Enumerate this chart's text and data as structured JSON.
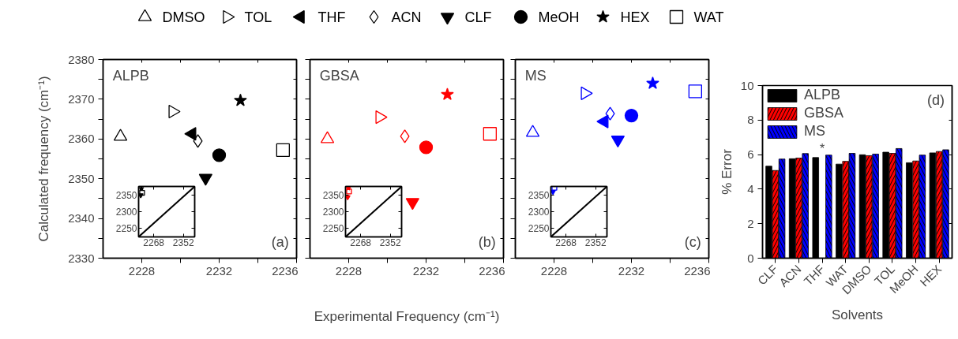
{
  "chart_data": [
    {
      "type": "scatter",
      "ylabel": "Calculated frequency (cm⁻¹)",
      "xlim": [
        2226,
        2236
      ],
      "ylim": [
        2330,
        2380
      ],
      "xticks": [
        2228,
        2232,
        2236
      ],
      "yticks": [
        2330,
        2340,
        2350,
        2360,
        2370,
        2380
      ],
      "grid": false,
      "legend": "top",
      "annotations": [
        "ALPB",
        "(a)"
      ],
      "series": [
        {
          "name": "DMSO",
          "color": "#000000",
          "marker": "triangle-open",
          "x": [
            2226.9
          ],
          "values": [
            2360.6
          ]
        },
        {
          "name": "TOL",
          "color": "#000000",
          "marker": "triangle-right-open",
          "x": [
            2229.6
          ],
          "values": [
            2366.9
          ]
        },
        {
          "name": "THF",
          "color": "#000000",
          "marker": "triangle-left",
          "x": [
            2230.6
          ],
          "values": [
            2361.3
          ]
        },
        {
          "name": "ACN",
          "color": "#000000",
          "marker": "diamond-open",
          "x": [
            2230.9
          ],
          "values": [
            2359.5
          ]
        },
        {
          "name": "CLF",
          "color": "#000000",
          "marker": "triangle-down",
          "x": [
            2231.3
          ],
          "values": [
            2350.2
          ]
        },
        {
          "name": "MeOH",
          "color": "#000000",
          "marker": "circle",
          "x": [
            2232.0
          ],
          "values": [
            2355.9
          ]
        },
        {
          "name": "HEX",
          "color": "#000000",
          "marker": "star",
          "x": [
            2233.1
          ],
          "values": [
            2369.7
          ]
        },
        {
          "name": "WAT",
          "color": "#000000",
          "marker": "square-open",
          "x": [
            2235.3
          ],
          "values": [
            2357.2
          ]
        }
      ]
    },
    {
      "type": "scatter",
      "xlim": [
        2225,
        2384
      ],
      "ylim": [
        2225,
        2376
      ],
      "xticks": [
        2268,
        2352
      ],
      "yticks": [
        2250,
        2300,
        2350
      ],
      "grid": false,
      "series": [
        {
          "type": "line",
          "color": "#000000",
          "x": [
            2225,
            2384
          ],
          "values": [
            2225,
            2376
          ]
        },
        {
          "color": "#000000",
          "marker": "triangle-down",
          "x": [
            2231
          ],
          "values": [
            2350
          ]
        },
        {
          "color": "#000000",
          "marker": "square-open",
          "x": [
            2235
          ],
          "values": [
            2357
          ]
        },
        {
          "color": "#000000",
          "marker": "star",
          "x": [
            2233
          ],
          "values": [
            2370
          ]
        }
      ]
    },
    {
      "type": "scatter",
      "xlabel": "Experimental Frequency (cm⁻¹)",
      "xlim": [
        2226,
        2236
      ],
      "ylim": [
        2330,
        2380
      ],
      "xticks": [
        2228,
        2232,
        2236
      ],
      "yticks": [
        2330,
        2340,
        2350,
        2360,
        2370,
        2380
      ],
      "tick_labels": "x",
      "grid": false,
      "annotations": [
        "GBSA",
        "(b)"
      ],
      "series": [
        {
          "color": "#ff0000",
          "marker": "triangle-open",
          "x": [
            2226.9
          ],
          "values": [
            2360.0
          ]
        },
        {
          "color": "#ff0000",
          "marker": "triangle-right-open",
          "x": [
            2229.6
          ],
          "values": [
            2365.5
          ]
        },
        {
          "color": "#ff0000",
          "marker": "diamond-open",
          "x": [
            2230.9
          ],
          "values": [
            2360.7
          ]
        },
        {
          "color": "#ff0000",
          "marker": "triangle-down",
          "x": [
            2231.3
          ],
          "values": [
            2344.1
          ]
        },
        {
          "color": "#ff0000",
          "marker": "circle",
          "x": [
            2232.0
          ],
          "values": [
            2357.9
          ]
        },
        {
          "color": "#ff0000",
          "marker": "star",
          "x": [
            2233.1
          ],
          "values": [
            2371.2
          ]
        },
        {
          "color": "#ff0000",
          "marker": "square-open",
          "x": [
            2235.3
          ],
          "values": [
            2361.3
          ]
        }
      ]
    },
    {
      "type": "scatter",
      "xlim": [
        2225,
        2384
      ],
      "ylim": [
        2225,
        2376
      ],
      "xticks": [
        2268,
        2352
      ],
      "yticks": [
        2250,
        2300,
        2350
      ],
      "grid": false,
      "series": [
        {
          "type": "line",
          "color": "#000000",
          "x": [
            2225,
            2384
          ],
          "values": [
            2225,
            2376
          ]
        },
        {
          "color": "#ff0000",
          "marker": "triangle-down",
          "x": [
            2231
          ],
          "values": [
            2344
          ]
        },
        {
          "color": "#ff0000",
          "marker": "square-open",
          "x": [
            2235
          ],
          "values": [
            2361
          ]
        },
        {
          "color": "#ff0000",
          "marker": "star",
          "x": [
            2233
          ],
          "values": [
            2371
          ]
        }
      ]
    },
    {
      "type": "scatter",
      "xlim": [
        2226,
        2236
      ],
      "ylim": [
        2330,
        2380
      ],
      "xticks": [
        2228,
        2232,
        2236
      ],
      "yticks": [
        2330,
        2340,
        2350,
        2360,
        2370,
        2380
      ],
      "tick_labels": "x",
      "grid": false,
      "annotations": [
        "MS",
        "(c)"
      ],
      "series": [
        {
          "color": "#0000ff",
          "marker": "triangle-open",
          "x": [
            2226.9
          ],
          "values": [
            2361.6
          ]
        },
        {
          "color": "#0000ff",
          "marker": "triangle-right-open",
          "x": [
            2229.6
          ],
          "values": [
            2371.5
          ]
        },
        {
          "color": "#0000ff",
          "marker": "triangle-left",
          "x": [
            2230.6
          ],
          "values": [
            2364.4
          ]
        },
        {
          "color": "#0000ff",
          "marker": "diamond-open",
          "x": [
            2230.9
          ],
          "values": [
            2366.4
          ]
        },
        {
          "color": "#0000ff",
          "marker": "triangle-down",
          "x": [
            2231.3
          ],
          "values": [
            2359.8
          ]
        },
        {
          "color": "#0000ff",
          "marker": "circle",
          "x": [
            2232.0
          ],
          "values": [
            2365.9
          ]
        },
        {
          "color": "#0000ff",
          "marker": "star",
          "x": [
            2233.1
          ],
          "values": [
            2374.0
          ]
        },
        {
          "color": "#0000ff",
          "marker": "square-open",
          "x": [
            2235.3
          ],
          "values": [
            2372.0
          ]
        }
      ]
    },
    {
      "type": "scatter",
      "xlim": [
        2225,
        2384
      ],
      "ylim": [
        2225,
        2376
      ],
      "xticks": [
        2268,
        2352
      ],
      "yticks": [
        2250,
        2300,
        2350
      ],
      "grid": false,
      "series": [
        {
          "type": "line",
          "color": "#000000",
          "x": [
            2225,
            2384
          ],
          "values": [
            2225,
            2376
          ]
        },
        {
          "color": "#0000ff",
          "marker": "triangle-down",
          "x": [
            2231
          ],
          "values": [
            2360
          ]
        },
        {
          "color": "#0000ff",
          "marker": "square-open",
          "x": [
            2235
          ],
          "values": [
            2372
          ]
        }
      ]
    },
    {
      "type": "bar",
      "xlabel": "Solvents",
      "ylabel": "% Error",
      "ylim": [
        0,
        10
      ],
      "yticks": [
        0,
        2,
        4,
        6,
        8,
        10
      ],
      "grid": false,
      "legend": "top left",
      "categories": [
        "CLF",
        "ACN",
        "THF",
        "WAT",
        "DMSO",
        "TOL",
        "MeOH",
        "HEX"
      ],
      "annotations": [
        "(d)",
        "*"
      ],
      "series": [
        {
          "name": "ALPB",
          "color": "#000000",
          "values": [
            5.33,
            5.76,
            5.83,
            5.45,
            5.99,
            6.14,
            5.53,
            6.1
          ]
        },
        {
          "name": "GBSA",
          "color": "#ff0000",
          "values": [
            5.08,
            5.8,
            null,
            5.61,
            5.94,
            6.07,
            5.63,
            6.18
          ]
        },
        {
          "name": "MS",
          "color": "#0000ff",
          "values": [
            5.74,
            6.06,
            5.97,
            6.07,
            6.03,
            6.35,
            5.97,
            6.28
          ]
        }
      ]
    }
  ]
}
